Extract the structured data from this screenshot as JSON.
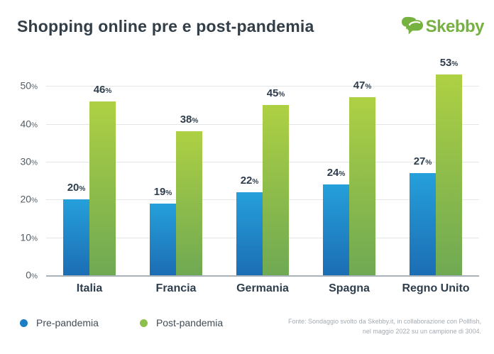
{
  "header": {
    "title": "Shopping online pre e post-pandemia",
    "logo_text": "Skebby"
  },
  "chart_data": {
    "type": "bar",
    "title": "Shopping online pre e post-pandemia",
    "categories": [
      "Italia",
      "Francia",
      "Germania",
      "Spagna",
      "Regno Unito"
    ],
    "series": [
      {
        "name": "Pre-pandemia",
        "values": [
          20,
          19,
          22,
          24,
          27
        ],
        "color_top": "#25a0da",
        "color_bottom": "#1c6db4"
      },
      {
        "name": "Post-pandemia",
        "values": [
          46,
          38,
          45,
          47,
          53
        ],
        "color_top": "#aed043",
        "color_bottom": "#6fa953"
      }
    ],
    "unit": "%",
    "y_ticks": [
      0,
      10,
      20,
      30,
      40,
      50
    ],
    "ylim": [
      0,
      60
    ],
    "grid": true,
    "legend_position": "bottom-left",
    "value_labels": true
  },
  "legend": {
    "items": [
      {
        "label": "Pre-pandemia",
        "color": "#1b7fc4"
      },
      {
        "label": "Post-pandemia",
        "color": "#8cbf4b"
      }
    ]
  },
  "footer": {
    "source_line1": "Fonte: Sondaggio svolto da Skebby.it, in collaborazione con Pollfish,",
    "source_line2": "nel maggio 2022 su un campione di 3004."
  },
  "colors": {
    "title": "#333f48",
    "logo_green": "#76b23f",
    "gridline": "#e3e6e9",
    "axis_line": "#a9b2b9",
    "label_dark": "#2f3e4d"
  }
}
